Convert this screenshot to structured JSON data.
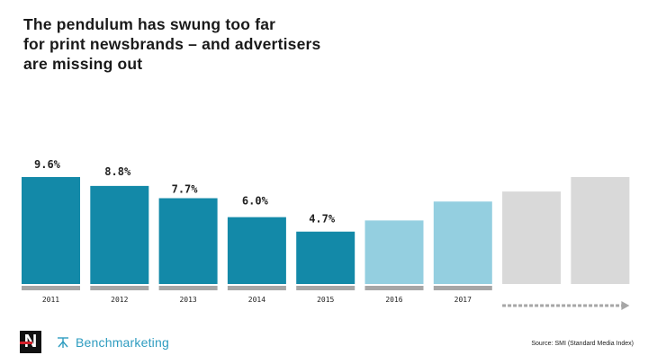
{
  "title": "The pendulum has swung too far\nfor print newsbrands – and advertisers\nare missing out",
  "source": "Source: SMI (Standard Media Index)",
  "logos": {
    "newsworks_letter": "N",
    "benchmarketing": "Benchmarketing"
  },
  "colors": {
    "actual": "#1389a8",
    "forecast": "#94cfe0",
    "future": "#d9d9d9",
    "baseline": "#a6a6a6",
    "arrow": "#a6a6a6"
  },
  "chart_data": {
    "type": "bar",
    "title": "The pendulum has swung too far for print newsbrands – and advertisers are missing out",
    "xlabel": "",
    "ylabel": "",
    "ylim": [
      0,
      10
    ],
    "categories": [
      "2011",
      "2012",
      "2013",
      "2014",
      "2015",
      "2016",
      "2017",
      "",
      ""
    ],
    "values": [
      9.6,
      8.8,
      7.7,
      6.0,
      4.7,
      5.7,
      7.4,
      8.3,
      9.6
    ],
    "data_labels": [
      "9.6%",
      "8.8%",
      "7.7%",
      "6.0%",
      "4.7%",
      "",
      "",
      "",
      ""
    ],
    "bar_kinds": [
      "actual",
      "actual",
      "actual",
      "actual",
      "actual",
      "forecast",
      "forecast",
      "future",
      "future"
    ],
    "annotation": "dashed arrow continuing to the right"
  }
}
